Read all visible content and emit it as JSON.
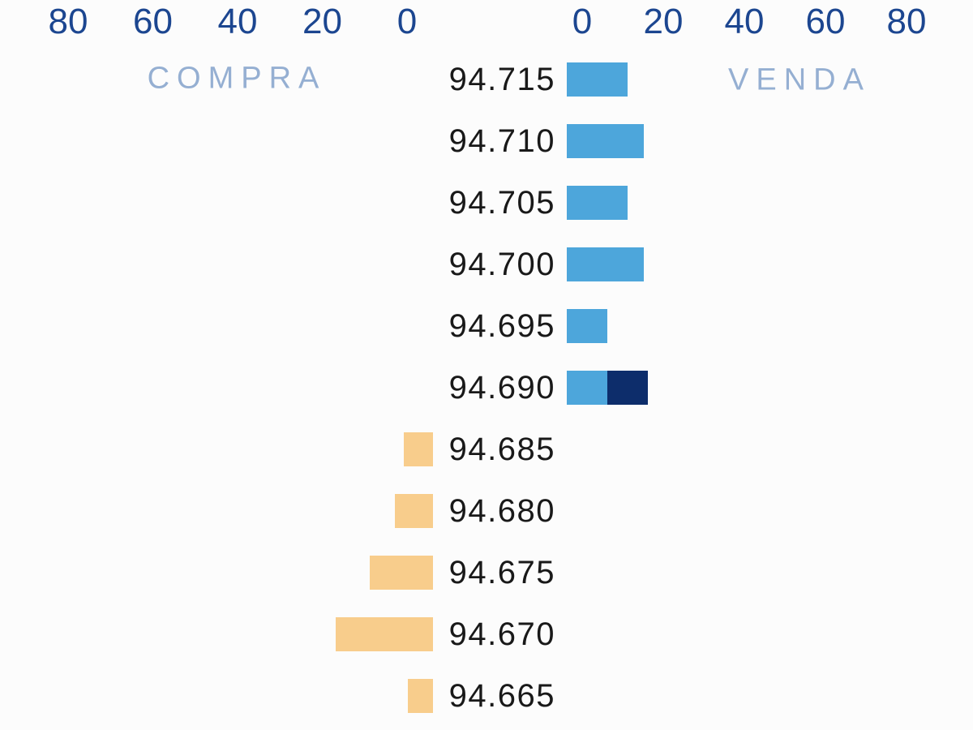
{
  "chart_data": {
    "type": "bar",
    "subtype": "diverging-depth-of-market",
    "title": "",
    "orientation": "horizontal",
    "grid": false,
    "left_axis": {
      "label": "COMPRA",
      "ticks": [
        80,
        60,
        40,
        20,
        0
      ],
      "range": [
        0,
        80
      ],
      "direction": "right-to-left"
    },
    "right_axis": {
      "label": "VENDA",
      "ticks": [
        0,
        20,
        40,
        60,
        80
      ],
      "range": [
        0,
        80
      ],
      "direction": "left-to-right"
    },
    "rows": [
      {
        "price": "94.715",
        "side": "venda",
        "value": 15
      },
      {
        "price": "94.710",
        "side": "venda",
        "value": 19
      },
      {
        "price": "94.705",
        "side": "venda",
        "value": 15
      },
      {
        "price": "94.700",
        "side": "venda",
        "value": 19
      },
      {
        "price": "94.695",
        "side": "venda",
        "value": 10
      },
      {
        "price": "94.690",
        "side": "venda",
        "value": 10,
        "highlight_value": 10
      },
      {
        "price": "94.685",
        "side": "compra",
        "value": 7
      },
      {
        "price": "94.680",
        "side": "compra",
        "value": 9
      },
      {
        "price": "94.675",
        "side": "compra",
        "value": 15
      },
      {
        "price": "94.670",
        "side": "compra",
        "value": 23
      },
      {
        "price": "94.665",
        "side": "compra",
        "value": 6
      }
    ]
  },
  "colors": {
    "background": "#FCFCFC",
    "buy_bar": "#F8CD8C",
    "sell_bar": "#4DA6DB",
    "sell_bar_highlight": "#0D2D6B",
    "axis_tick": "#1C4690",
    "side_label": "#95AFD2",
    "price_label": "#191919"
  }
}
